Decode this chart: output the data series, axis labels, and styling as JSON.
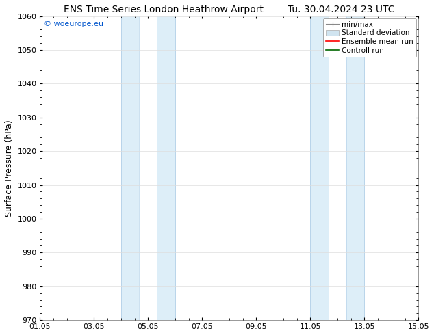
{
  "title_left": "ENS Time Series London Heathrow Airport",
  "title_right": "Tu. 30.04.2024 23 UTC",
  "ylabel": "Surface Pressure (hPa)",
  "ylim": [
    970,
    1060
  ],
  "yticks": [
    970,
    980,
    990,
    1000,
    1010,
    1020,
    1030,
    1040,
    1050,
    1060
  ],
  "xlim_start": 0,
  "xlim_end": 14,
  "xtick_labels": [
    "01.05",
    "03.05",
    "05.05",
    "07.05",
    "09.05",
    "11.05",
    "13.05",
    "15.05"
  ],
  "xtick_positions": [
    0,
    2,
    4,
    6,
    8,
    10,
    12,
    14
  ],
  "shaded_bands": [
    {
      "xmin": 3.0,
      "xmax": 3.67,
      "color": "#ddeef8"
    },
    {
      "xmin": 3.67,
      "xmax": 4.33,
      "color": "#ffffff"
    },
    {
      "xmin": 4.33,
      "xmax": 5.0,
      "color": "#ddeef8"
    },
    {
      "xmin": 10.0,
      "xmax": 10.67,
      "color": "#ddeef8"
    },
    {
      "xmin": 10.67,
      "xmax": 11.33,
      "color": "#ffffff"
    },
    {
      "xmin": 11.33,
      "xmax": 12.0,
      "color": "#ddeef8"
    }
  ],
  "band_borders": [
    3.0,
    5.0,
    10.0,
    12.0
  ],
  "band_inner_lines": [
    3.67,
    4.33,
    10.67,
    11.33
  ],
  "watermark": "© woeurope.eu",
  "watermark_color": "#0055cc",
  "background_color": "#ffffff",
  "grid_color": "#dddddd",
  "title_fontsize": 10,
  "axis_label_fontsize": 9,
  "tick_fontsize": 8,
  "legend_fontsize": 7.5
}
